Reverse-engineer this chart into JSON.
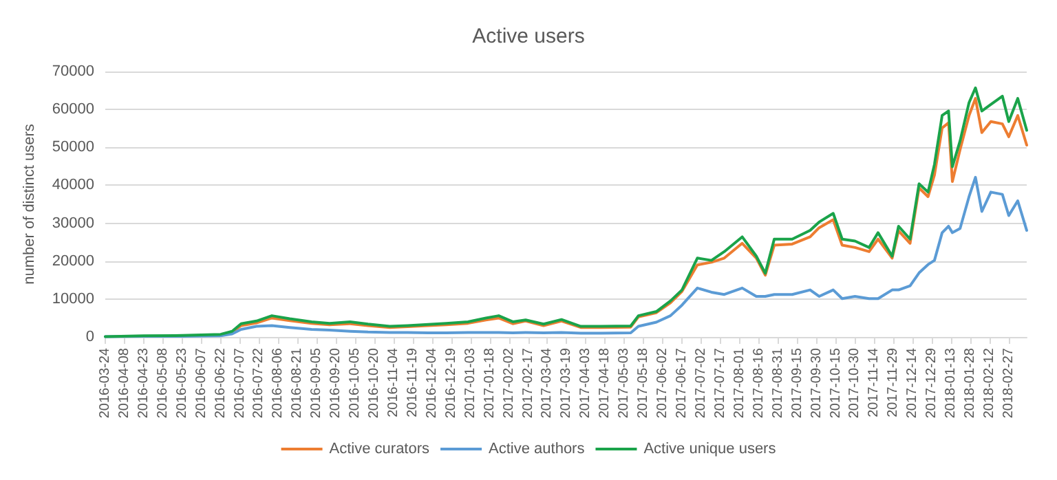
{
  "chart_data": {
    "type": "line",
    "title": "Active users",
    "ylabel": "number of distinct users",
    "x": [
      "2016-03-24",
      "2016-04-23",
      "2016-05-23",
      "2016-06-22",
      "2016-07-01",
      "2016-07-08",
      "2016-07-20",
      "2016-08-01",
      "2016-08-15",
      "2016-09-01",
      "2016-09-15",
      "2016-10-01",
      "2016-10-15",
      "2016-11-01",
      "2016-11-15",
      "2016-12-01",
      "2016-12-15",
      "2017-01-01",
      "2017-01-15",
      "2017-01-25",
      "2017-02-05",
      "2017-02-15",
      "2017-03-01",
      "2017-03-15",
      "2017-03-30",
      "2017-04-15",
      "2017-05-08",
      "2017-05-14",
      "2017-05-28",
      "2017-06-08",
      "2017-06-17",
      "2017-06-29",
      "2017-07-10",
      "2017-07-20",
      "2017-08-03",
      "2017-08-14",
      "2017-08-21",
      "2017-08-28",
      "2017-09-11",
      "2017-09-25",
      "2017-10-02",
      "2017-10-13",
      "2017-10-20",
      "2017-10-30",
      "2017-11-10",
      "2017-11-17",
      "2017-11-28",
      "2017-12-03",
      "2017-12-12",
      "2017-12-19",
      "2017-12-26",
      "2017-12-31",
      "2018-01-06",
      "2018-01-11",
      "2018-01-14",
      "2018-01-20",
      "2018-01-27",
      "2018-02-01",
      "2018-02-06",
      "2018-02-13",
      "2018-02-22",
      "2018-02-27",
      "2018-03-06",
      "2018-03-13"
    ],
    "series": [
      {
        "name": "Active curators",
        "color": "#ed7d31",
        "values": [
          null,
          null,
          null,
          500,
          1200,
          3000,
          3700,
          5000,
          4300,
          3600,
          3200,
          3500,
          3000,
          2500,
          2700,
          3000,
          3200,
          3600,
          4500,
          5000,
          3500,
          4200,
          3000,
          4200,
          2500,
          2500,
          2600,
          5300,
          6400,
          9000,
          12000,
          19000,
          19700,
          20800,
          24700,
          20800,
          16300,
          24200,
          24500,
          26400,
          28800,
          30900,
          24200,
          23600,
          22500,
          25800,
          20800,
          28000,
          24700,
          39300,
          37000,
          42700,
          55100,
          56500,
          41000,
          49400,
          58400,
          62900,
          53900,
          56800,
          56200,
          52800,
          58400,
          50600
        ]
      },
      {
        "name": "Active authors",
        "color": "#5b9bd5",
        "values": [
          100,
          200,
          200,
          300,
          800,
          2000,
          2800,
          3000,
          2500,
          2000,
          1800,
          1500,
          1300,
          1200,
          1200,
          1100,
          1100,
          1200,
          1200,
          1200,
          1100,
          1200,
          1100,
          1200,
          1000,
          1000,
          1100,
          2800,
          3900,
          5600,
          8400,
          12900,
          11800,
          11200,
          12900,
          10700,
          10700,
          11200,
          11200,
          12400,
          10700,
          12400,
          10100,
          10700,
          10100,
          10100,
          12400,
          12400,
          13500,
          16900,
          19100,
          20200,
          27500,
          29200,
          27500,
          28600,
          37000,
          42100,
          33100,
          38200,
          37600,
          32000,
          35900,
          28100
        ]
      },
      {
        "name": "Active unique users",
        "color": "#1aa34a",
        "values": [
          100,
          300,
          400,
          700,
          1500,
          3500,
          4200,
          5600,
          4800,
          4000,
          3600,
          4000,
          3400,
          2800,
          3000,
          3300,
          3600,
          4000,
          5000,
          5600,
          4000,
          4500,
          3400,
          4600,
          2800,
          2800,
          2900,
          5600,
          6700,
          9500,
          12400,
          20800,
          20200,
          22500,
          26400,
          21300,
          16800,
          25800,
          25800,
          28100,
          30300,
          32600,
          25800,
          25300,
          23600,
          27500,
          21300,
          29200,
          25800,
          40400,
          38200,
          45500,
          58400,
          59600,
          44900,
          51700,
          61800,
          65700,
          59600,
          61300,
          63500,
          56800,
          62900,
          54500
        ]
      }
    ],
    "xlim": [
      "2016-03-24",
      "2018-03-13"
    ],
    "xticks": [
      "2016-03-24",
      "2016-04-08",
      "2016-04-23",
      "2016-05-08",
      "2016-05-23",
      "2016-06-07",
      "2016-06-22",
      "2016-07-07",
      "2016-07-22",
      "2016-08-06",
      "2016-08-21",
      "2016-09-05",
      "2016-09-20",
      "2016-10-05",
      "2016-10-20",
      "2016-11-04",
      "2016-11-19",
      "2016-12-04",
      "2016-12-19",
      "2017-01-03",
      "2017-01-18",
      "2017-02-02",
      "2017-02-17",
      "2017-03-04",
      "2017-03-19",
      "2017-04-03",
      "2017-04-18",
      "2017-05-03",
      "2017-05-18",
      "2017-06-02",
      "2017-06-17",
      "2017-07-02",
      "2017-07-17",
      "2017-08-01",
      "2017-08-16",
      "2017-08-31",
      "2017-09-15",
      "2017-09-30",
      "2017-10-15",
      "2017-10-30",
      "2017-11-14",
      "2017-11-29",
      "2017-12-14",
      "2017-12-29",
      "2018-01-13",
      "2018-01-28",
      "2018-02-12",
      "2018-02-27"
    ],
    "ylim": [
      0,
      70000
    ],
    "yticks": [
      0,
      10000,
      20000,
      30000,
      40000,
      50000,
      60000,
      70000
    ],
    "grid": "y",
    "legend": "bottom",
    "marker": "none",
    "line_style": "solid"
  }
}
